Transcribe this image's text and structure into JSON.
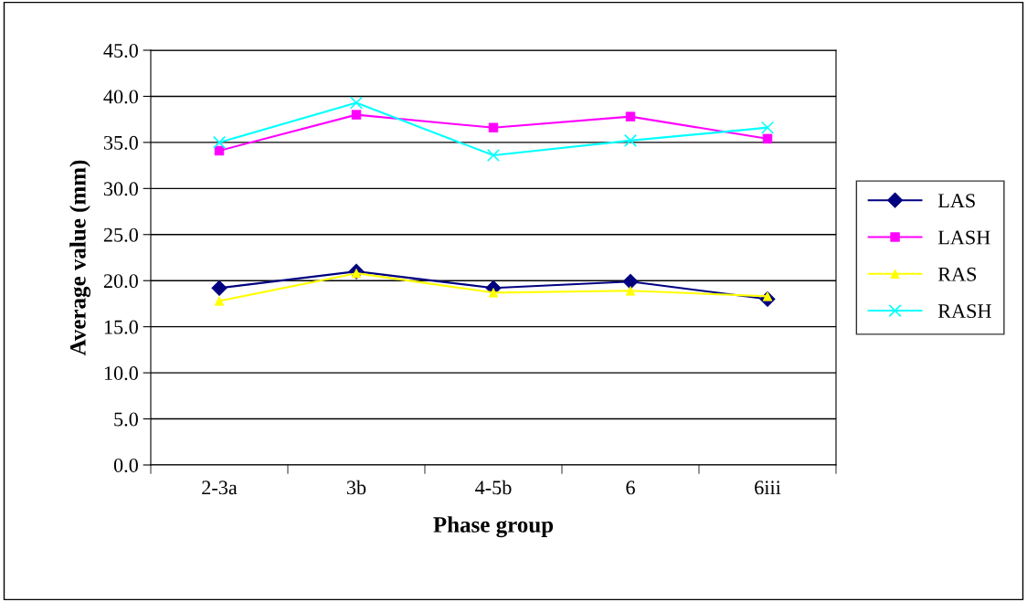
{
  "chart_data": {
    "type": "line",
    "xlabel": "Phase group",
    "ylabel": "Average value (mm)",
    "categories": [
      "2-3a",
      "3b",
      "4-5b",
      "6",
      "6iii"
    ],
    "series": [
      {
        "name": "LAS",
        "color": "#000080",
        "marker": "diamond",
        "values": [
          19.2,
          21.0,
          19.2,
          19.9,
          18.0
        ]
      },
      {
        "name": "LASH",
        "color": "#ff00ff",
        "marker": "square",
        "values": [
          34.1,
          38.0,
          36.6,
          37.8,
          35.4
        ]
      },
      {
        "name": "RAS",
        "color": "#ffff00",
        "marker": "triangle",
        "values": [
          17.8,
          20.8,
          18.7,
          18.9,
          18.3
        ]
      },
      {
        "name": "RASH",
        "color": "#00ffff",
        "marker": "cross",
        "values": [
          35.0,
          39.3,
          33.6,
          35.2,
          36.6
        ]
      }
    ],
    "ylim": [
      0,
      45
    ],
    "yticks": [
      {
        "value": 0,
        "label": "0.0"
      },
      {
        "value": 5,
        "label": "5.0"
      },
      {
        "value": 10,
        "label": "10.0"
      },
      {
        "value": 15,
        "label": "15.0"
      },
      {
        "value": 20,
        "label": "20.0"
      },
      {
        "value": 25,
        "label": "25.0"
      },
      {
        "value": 30,
        "label": "30.0"
      },
      {
        "value": 35,
        "label": "35.0"
      },
      {
        "value": 40,
        "label": "40.0"
      },
      {
        "value": 45,
        "label": "45.0"
      }
    ],
    "grid": "y",
    "legend": "right"
  }
}
